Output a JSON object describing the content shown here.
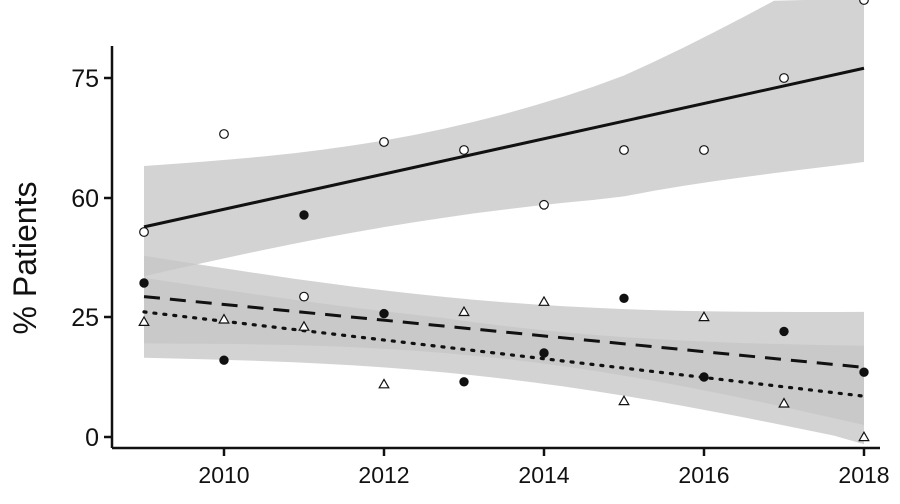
{
  "chart_data": {
    "type": "scatter",
    "title": "",
    "xlabel": "",
    "ylabel": "% Patients",
    "xlim": [
      2008.6,
      2018.2
    ],
    "ylim": [
      -1.5,
      83
    ],
    "x_ticks": [
      2010,
      2012,
      2014,
      2016,
      2018
    ],
    "x_tick_labels": [
      "2010",
      "2012",
      "2014",
      "2016",
      "2018"
    ],
    "y_ticks": [
      0,
      25,
      60,
      75
    ],
    "y_tick_labels": [
      "0",
      "25",
      "60",
      "75"
    ],
    "grid": false,
    "legend": "none",
    "series": [
      {
        "marker": "open-circle",
        "line_style": "solid",
        "x": [
          2009,
          2010,
          2011,
          2012,
          2013,
          2014,
          2015,
          2016,
          2017,
          2018
        ],
        "values": [
          50,
          68,
          31,
          67,
          66,
          58,
          66,
          66,
          75,
          87
        ],
        "trend": {
          "start": 51.5,
          "end": 76
        },
        "band": {
          "lower_start": 37,
          "lower_end": 64.5,
          "upper_start": 64,
          "upper_end": 88
        }
      },
      {
        "marker": "filled-circle",
        "line_style": "dashed",
        "x": [
          2009,
          2010,
          2011,
          2012,
          2013,
          2014,
          2015,
          2016,
          2017,
          2018
        ],
        "values": [
          35,
          16,
          55,
          26,
          11.5,
          17.5,
          30.5,
          12.5,
          22,
          13.5
        ],
        "trend": {
          "start": 31,
          "end": 14.5
        },
        "band": {
          "lower_start": 19.5,
          "lower_end": 2.5,
          "upper_start": 43,
          "upper_end": 26.5
        }
      },
      {
        "marker": "open-triangle",
        "line_style": "dotted",
        "x": [
          2009,
          2010,
          2011,
          2012,
          2013,
          2014,
          2015,
          2016,
          2017,
          2018
        ],
        "values": [
          24,
          24.5,
          23,
          11,
          26.5,
          29.5,
          7.5,
          25,
          7,
          0
        ],
        "trend": {
          "start": 26.5,
          "end": 8.5
        },
        "band": {
          "lower_start": 16.5,
          "lower_end": -1,
          "upper_start": 36.5,
          "upper_end": 19
        }
      }
    ]
  },
  "colors": {
    "band": "#c6c6c6",
    "band_opacity": 0.78,
    "line": "#111111",
    "axis": "#111111",
    "marker_fill": "#ffffff"
  }
}
